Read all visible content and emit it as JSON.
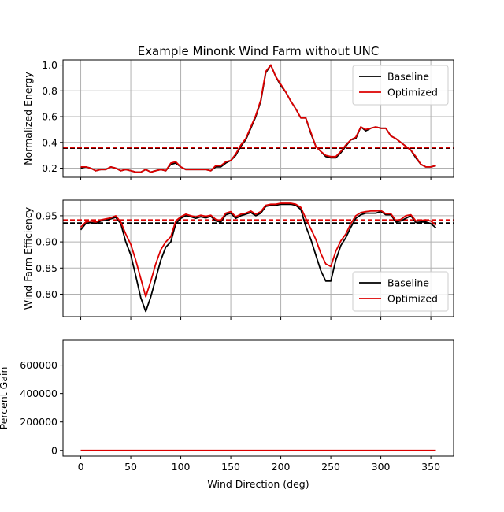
{
  "chart_data": {
    "type": "line",
    "title": "Example Minonk Wind Farm without UNC",
    "xlabel": "Wind Direction (deg)",
    "xlim": [
      -17.75,
      372.75
    ],
    "xticks": [
      0,
      50,
      100,
      150,
      200,
      250,
      300,
      350
    ],
    "x": [
      0,
      5,
      10,
      15,
      20,
      25,
      30,
      35,
      40,
      45,
      50,
      55,
      60,
      65,
      70,
      75,
      80,
      85,
      90,
      95,
      100,
      105,
      110,
      115,
      120,
      125,
      130,
      135,
      140,
      145,
      150,
      155,
      160,
      165,
      170,
      175,
      180,
      185,
      190,
      195,
      200,
      205,
      210,
      215,
      220,
      225,
      230,
      235,
      240,
      245,
      250,
      255,
      260,
      265,
      270,
      275,
      280,
      285,
      290,
      295,
      300,
      305,
      310,
      315,
      320,
      325,
      330,
      335,
      340,
      345,
      350,
      355
    ],
    "panels": [
      {
        "ylabel": "Normalized Energy",
        "ylim": [
          0.13,
          1.04
        ],
        "yticks": [
          0.2,
          0.4,
          0.6,
          0.8,
          1.0
        ],
        "ytick_labels": [
          "0.2",
          "0.4",
          "0.6",
          "0.8",
          "1.0"
        ],
        "grid": true,
        "legend_position": "upper-right",
        "series": [
          {
            "name": "Baseline",
            "color": "#000000",
            "values": [
              0.2,
              0.21,
              0.2,
              0.18,
              0.19,
              0.19,
              0.21,
              0.2,
              0.18,
              0.19,
              0.18,
              0.17,
              0.17,
              0.19,
              0.17,
              0.18,
              0.19,
              0.18,
              0.23,
              0.24,
              0.21,
              0.19,
              0.19,
              0.19,
              0.19,
              0.19,
              0.18,
              0.21,
              0.21,
              0.24,
              0.26,
              0.3,
              0.37,
              0.42,
              0.51,
              0.6,
              0.72,
              0.94,
              1.0,
              0.91,
              0.84,
              0.79,
              0.72,
              0.66,
              0.59,
              0.59,
              0.47,
              0.37,
              0.33,
              0.29,
              0.28,
              0.28,
              0.32,
              0.37,
              0.42,
              0.43,
              0.52,
              0.49,
              0.51,
              0.52,
              0.51,
              0.51,
              0.45,
              0.43,
              0.4,
              0.37,
              0.34,
              0.28,
              0.23,
              0.21,
              0.21,
              0.22
            ]
          },
          {
            "name": "Optimized",
            "color": "#dd0000",
            "values": [
              0.21,
              0.21,
              0.2,
              0.18,
              0.19,
              0.19,
              0.21,
              0.2,
              0.18,
              0.19,
              0.18,
              0.17,
              0.17,
              0.19,
              0.17,
              0.18,
              0.19,
              0.18,
              0.24,
              0.25,
              0.21,
              0.19,
              0.19,
              0.19,
              0.19,
              0.19,
              0.18,
              0.22,
              0.22,
              0.25,
              0.26,
              0.31,
              0.38,
              0.43,
              0.52,
              0.61,
              0.73,
              0.95,
              1.0,
              0.91,
              0.85,
              0.79,
              0.72,
              0.66,
              0.59,
              0.59,
              0.48,
              0.37,
              0.33,
              0.3,
              0.29,
              0.29,
              0.33,
              0.38,
              0.42,
              0.44,
              0.52,
              0.5,
              0.51,
              0.52,
              0.51,
              0.51,
              0.45,
              0.43,
              0.4,
              0.37,
              0.34,
              0.29,
              0.23,
              0.21,
              0.21,
              0.22
            ]
          }
        ],
        "hlines": [
          {
            "y": 0.355,
            "color": "#000000",
            "style": "dashed"
          },
          {
            "y": 0.36,
            "color": "#dd0000",
            "style": "dashed"
          }
        ]
      },
      {
        "ylabel": "Wind Farm Efficiency",
        "ylim": [
          0.757,
          0.98
        ],
        "yticks": [
          0.8,
          0.85,
          0.9,
          0.95
        ],
        "ytick_labels": [
          "0.80",
          "0.85",
          "0.90",
          "0.95"
        ],
        "grid": true,
        "legend_position": "lower-right",
        "series": [
          {
            "name": "Baseline",
            "color": "#000000",
            "values": [
              0.923,
              0.935,
              0.937,
              0.935,
              0.94,
              0.941,
              0.944,
              0.947,
              0.935,
              0.9,
              0.875,
              0.835,
              0.793,
              0.767,
              0.795,
              0.83,
              0.865,
              0.89,
              0.9,
              0.935,
              0.945,
              0.95,
              0.948,
              0.945,
              0.948,
              0.946,
              0.949,
              0.94,
              0.938,
              0.952,
              0.955,
              0.945,
              0.95,
              0.953,
              0.956,
              0.95,
              0.955,
              0.968,
              0.97,
              0.97,
              0.972,
              0.972,
              0.972,
              0.97,
              0.962,
              0.93,
              0.905,
              0.875,
              0.845,
              0.825,
              0.825,
              0.865,
              0.893,
              0.908,
              0.928,
              0.945,
              0.952,
              0.955,
              0.955,
              0.955,
              0.958,
              0.952,
              0.952,
              0.938,
              0.94,
              0.945,
              0.95,
              0.937,
              0.938,
              0.938,
              0.935,
              0.927
            ]
          },
          {
            "name": "Optimized",
            "color": "#dd0000",
            "values": [
              0.928,
              0.938,
              0.94,
              0.938,
              0.942,
              0.944,
              0.946,
              0.95,
              0.938,
              0.915,
              0.895,
              0.865,
              0.83,
              0.795,
              0.825,
              0.858,
              0.885,
              0.9,
              0.91,
              0.94,
              0.948,
              0.953,
              0.95,
              0.948,
              0.951,
              0.949,
              0.951,
              0.943,
              0.941,
              0.955,
              0.958,
              0.948,
              0.953,
              0.955,
              0.959,
              0.953,
              0.958,
              0.97,
              0.972,
              0.972,
              0.974,
              0.974,
              0.974,
              0.972,
              0.966,
              0.945,
              0.925,
              0.905,
              0.878,
              0.858,
              0.853,
              0.882,
              0.902,
              0.915,
              0.935,
              0.95,
              0.956,
              0.958,
              0.959,
              0.959,
              0.96,
              0.954,
              0.954,
              0.941,
              0.943,
              0.95,
              0.952,
              0.94,
              0.941,
              0.942,
              0.94,
              0.932
            ]
          }
        ],
        "hlines": [
          {
            "y": 0.936,
            "color": "#000000",
            "style": "dashed"
          },
          {
            "y": 0.942,
            "color": "#dd0000",
            "style": "dashed"
          }
        ]
      },
      {
        "ylabel": "Percent Gain",
        "ylim": [
          -40000,
          775000
        ],
        "yticks": [
          0,
          200000,
          400000,
          600000
        ],
        "ytick_labels": [
          "0",
          "200000",
          "400000",
          "600000"
        ],
        "grid": false,
        "series": [
          {
            "name": "",
            "color": "#dd0000",
            "values": [
              0,
              0,
              0,
              0,
              0,
              0,
              0,
              0,
              0,
              0,
              0,
              0,
              0,
              0,
              0,
              0,
              0,
              0,
              0,
              0,
              0,
              0,
              0,
              0,
              0,
              0,
              0,
              0,
              0,
              0,
              0,
              0,
              0,
              0,
              0,
              0,
              0,
              0,
              0,
              0,
              0,
              0,
              0,
              0,
              0,
              0,
              0,
              0,
              0,
              0,
              0,
              0,
              0,
              0,
              0,
              0,
              0,
              0,
              0,
              0,
              0,
              0,
              0,
              0,
              0,
              0,
              0,
              0,
              0,
              0,
              0,
              0
            ]
          }
        ],
        "hlines": []
      }
    ]
  }
}
